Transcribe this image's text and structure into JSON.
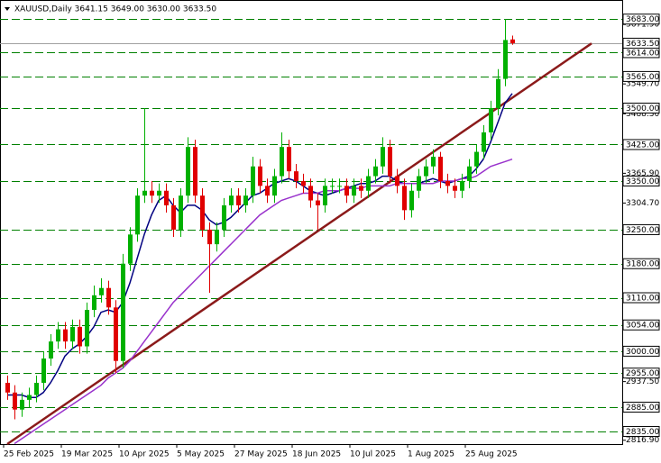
{
  "chart_data": {
    "type": "candlestick",
    "title": "XAUUSD,Daily  3641.15 3649.00 3630.00 3633.50",
    "categories": [
      "25 Feb 2025",
      null,
      null,
      null,
      null,
      null,
      null,
      null,
      "19 Mar 2025",
      null,
      null,
      null,
      null,
      null,
      null,
      null,
      "10 Apr 2025",
      null,
      null,
      null,
      null,
      null,
      null,
      null,
      "5 May 2025",
      null,
      null,
      null,
      null,
      null,
      null,
      null,
      "27 May 2025",
      null,
      null,
      null,
      null,
      null,
      null,
      null,
      "18 Jun 2025",
      null,
      null,
      null,
      null,
      null,
      null,
      null,
      "10 Jul 2025",
      null,
      null,
      null,
      null,
      null,
      null,
      null,
      "1 Aug 2025",
      null,
      null,
      null,
      null,
      null,
      null,
      null,
      "25 Aug 2025",
      null,
      null,
      null,
      null,
      null,
      null
    ],
    "open": [
      2935,
      2915,
      2880,
      2900,
      2910,
      2935,
      2985,
      3020,
      3045,
      3020,
      3050,
      3010,
      3085,
      3115,
      3130,
      3090,
      2980,
      3180,
      3240,
      3320,
      3330,
      3320,
      3330,
      3300,
      3250,
      3320,
      3420,
      3320,
      3250,
      3220,
      3250,
      3300,
      3320,
      3300,
      3320,
      3380,
      3340,
      3320,
      3360,
      3420,
      3370,
      3350,
      3340,
      3310,
      3300,
      3340,
      3340,
      3340,
      3320,
      3340,
      3330,
      3360,
      3380,
      3420,
      3360,
      3340,
      3290,
      3330,
      3360,
      3380,
      3400,
      3350,
      3340,
      3330,
      3350,
      3380,
      3410,
      3450,
      3500,
      3560,
      3641.15
    ],
    "high": [
      2950,
      2930,
      2915,
      2925,
      2950,
      3000,
      3035,
      3060,
      3060,
      3065,
      3065,
      3100,
      3135,
      3150,
      3145,
      3105,
      3200,
      3255,
      3335,
      3500,
      3350,
      3345,
      3345,
      3315,
      3335,
      3440,
      3435,
      3335,
      3265,
      3265,
      3315,
      3335,
      3335,
      3335,
      3400,
      3395,
      3355,
      3375,
      3450,
      3435,
      3385,
      3365,
      3355,
      3325,
      3355,
      3355,
      3355,
      3355,
      3355,
      3355,
      3375,
      3395,
      3440,
      3435,
      3375,
      3355,
      3345,
      3375,
      3395,
      3415,
      3410,
      3365,
      3355,
      3365,
      3395,
      3425,
      3465,
      3515,
      3580,
      3683,
      3649
    ],
    "low": [
      2900,
      2860,
      2865,
      2885,
      2895,
      2920,
      2970,
      3005,
      3005,
      3005,
      2995,
      2995,
      3070,
      3100,
      3075,
      2955,
      2965,
      3165,
      3225,
      3305,
      3305,
      3305,
      3285,
      3235,
      3235,
      3305,
      3305,
      3235,
      3120,
      3205,
      3235,
      3285,
      3285,
      3285,
      3305,
      3325,
      3305,
      3305,
      3345,
      3355,
      3335,
      3325,
      3295,
      3250,
      3285,
      3325,
      3325,
      3305,
      3305,
      3315,
      3315,
      3345,
      3365,
      3345,
      3325,
      3270,
      3275,
      3315,
      3345,
      3365,
      3335,
      3325,
      3315,
      3315,
      3335,
      3365,
      3395,
      3435,
      3485,
      3545,
      3630
    ],
    "close": [
      2915,
      2880,
      2900,
      2910,
      2935,
      2985,
      3020,
      3045,
      3020,
      3050,
      3010,
      3085,
      3115,
      3130,
      3090,
      2980,
      3180,
      3240,
      3320,
      3330,
      3320,
      3330,
      3300,
      3250,
      3320,
      3420,
      3320,
      3250,
      3220,
      3250,
      3300,
      3320,
      3300,
      3320,
      3380,
      3340,
      3320,
      3360,
      3420,
      3370,
      3350,
      3340,
      3310,
      3300,
      3340,
      3340,
      3340,
      3320,
      3340,
      3330,
      3360,
      3380,
      3420,
      3360,
      3340,
      3290,
      3330,
      3360,
      3380,
      3400,
      3350,
      3340,
      3330,
      3350,
      3380,
      3410,
      3450,
      3500,
      3560,
      3640,
      3633.5
    ],
    "up_color": "#00b000",
    "down_color": "#e00000",
    "lines": [
      {
        "color": "#000080",
        "values": [
          2910,
          2910,
          2910,
          2905,
          2905,
          2915,
          2935,
          2960,
          2990,
          3005,
          3015,
          3030,
          3050,
          3080,
          3085,
          3080,
          3100,
          3140,
          3190,
          3240,
          3280,
          3310,
          3320,
          3300,
          3285,
          3300,
          3300,
          3290,
          3270,
          3260,
          3265,
          3275,
          3290,
          3305,
          3320,
          3325,
          3335,
          3345,
          3350,
          3355,
          3350,
          3340,
          3330,
          3325,
          3320,
          3325,
          3330,
          3335,
          3340,
          3345,
          3345,
          3350,
          3360,
          3360,
          3350,
          3345,
          3345,
          3345,
          3350,
          3355,
          3350,
          3345,
          3350,
          3355,
          3360,
          3375,
          3395,
          3430,
          3470,
          3510,
          3530
        ]
      },
      {
        "color": "#9932cc",
        "values": [
          null,
          2810,
          2820,
          2830,
          2840,
          2850,
          2860,
          2870,
          2880,
          2890,
          2900,
          2910,
          2920,
          2930,
          2945,
          2955,
          2965,
          2980,
          3000,
          3020,
          3040,
          3060,
          3080,
          3100,
          3115,
          3130,
          3145,
          3160,
          3175,
          3190,
          3205,
          3220,
          3235,
          3250,
          3265,
          3280,
          3290,
          3300,
          3310,
          3315,
          3320,
          3325,
          3325,
          3325,
          3330,
          3330,
          3330,
          3335,
          3335,
          3335,
          3340,
          3340,
          3340,
          3340,
          3345,
          3345,
          3345,
          3345,
          3345,
          3345,
          3350,
          3350,
          3350,
          3355,
          3355,
          3360,
          3370,
          3380,
          3385,
          3390,
          3395
        ]
      }
    ],
    "trendline": {
      "color": "#8b1a1a",
      "x": [
        0,
        81
      ],
      "values": [
        2809,
        3633
      ]
    },
    "levels_color": "#008000",
    "levels": [
      {
        "value": 3683,
        "label": "3683.00"
      },
      {
        "value": 3614,
        "label": "3614.00"
      },
      {
        "value": 3565,
        "label": "3565.00"
      },
      {
        "value": 3500,
        "label": "3500.00"
      },
      {
        "value": 3425,
        "label": "3425.00"
      },
      {
        "value": 3350,
        "label": "3350.00"
      },
      {
        "value": 3250,
        "label": "3250.00"
      },
      {
        "value": 3180,
        "label": "3180.00"
      },
      {
        "value": 3110,
        "label": "3110.00"
      },
      {
        "value": 3054,
        "label": "3054.00"
      },
      {
        "value": 3000,
        "label": "3000.00"
      },
      {
        "value": 2955,
        "label": "2955.00"
      },
      {
        "value": 2885,
        "label": "2885.00"
      },
      {
        "value": 2835,
        "label": "2835.00"
      }
    ],
    "current_price": {
      "value": 3633.5,
      "label": "3633.50"
    },
    "ylim": [
      2809,
      3713
    ],
    "yticks": [
      {
        "value": 3671.9,
        "label": "3671.90"
      },
      {
        "value": 3549.7,
        "label": "3549.70"
      },
      {
        "value": 3488.3,
        "label": "3488.30"
      },
      {
        "value": 3365.9,
        "label": "3365.90"
      },
      {
        "value": 3304.7,
        "label": "3304.70"
      },
      {
        "value": 2937.5,
        "label": "2937.50"
      },
      {
        "value": 2816.9,
        "label": "2816.90"
      }
    ]
  }
}
